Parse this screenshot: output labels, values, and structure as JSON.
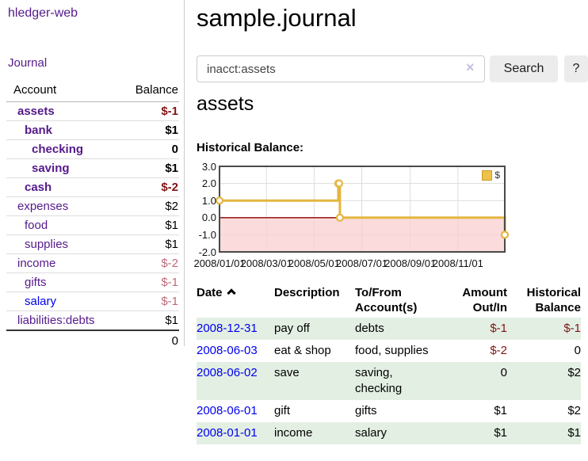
{
  "header": {
    "title": "sample.journal"
  },
  "search": {
    "value": "inacct:assets",
    "button_label": "Search",
    "help_label": "?",
    "clear_icon": "×"
  },
  "sidebar": {
    "brand": "hledger-web",
    "nav_journal": "Journal",
    "columns": {
      "account": "Account",
      "balance": "Balance"
    },
    "accounts": [
      {
        "label": "assets",
        "indent": 1,
        "bold": true,
        "balance": "$-1",
        "bclass": "neg"
      },
      {
        "label": "bank",
        "indent": 2,
        "bold": true,
        "balance": "$1",
        "bclass": ""
      },
      {
        "label": "checking",
        "indent": 3,
        "bold": true,
        "balance": "0",
        "bclass": ""
      },
      {
        "label": "saving",
        "indent": 3,
        "bold": true,
        "balance": "$1",
        "bclass": ""
      },
      {
        "label": "cash",
        "indent": 2,
        "bold": true,
        "balance": "$-2",
        "bclass": "neg"
      },
      {
        "label": "expenses",
        "indent": 1,
        "bold": false,
        "balance": "$2",
        "bclass": ""
      },
      {
        "label": "food",
        "indent": 2,
        "bold": false,
        "balance": "$1",
        "bclass": ""
      },
      {
        "label": "supplies",
        "indent": 2,
        "bold": false,
        "balance": "$1",
        "bclass": ""
      },
      {
        "label": "income",
        "indent": 1,
        "bold": false,
        "balance": "$-2",
        "bclass": "neg-light"
      },
      {
        "label": "gifts",
        "indent": 2,
        "bold": false,
        "balance": "$-1",
        "bclass": "neg-light"
      },
      {
        "label": "salary",
        "indent": 2,
        "bold": false,
        "balance": "$-1",
        "bclass": "neg-light",
        "link": "blue"
      },
      {
        "label": "liabilities:debts",
        "indent": 1,
        "bold": false,
        "balance": "$1",
        "bclass": ""
      }
    ],
    "total": "0"
  },
  "assets_section": {
    "heading": "assets",
    "chart_label": "Historical Balance:"
  },
  "chart_data": {
    "type": "line",
    "step": true,
    "title": "Historical Balance:",
    "series": [
      {
        "name": "$",
        "points": [
          {
            "date": "2008-01-01",
            "value": 1
          },
          {
            "date": "2008-06-01",
            "value": 2
          },
          {
            "date": "2008-06-02",
            "value": 2
          },
          {
            "date": "2008-06-03",
            "value": 0
          },
          {
            "date": "2008-12-31",
            "value": -1
          }
        ]
      }
    ],
    "xlim": [
      "2008-01-01",
      "2008-12-31"
    ],
    "ylim": [
      -2,
      3
    ],
    "x_tick_labels": [
      "2008/01/01",
      "2008/03/01",
      "2008/05/01",
      "2008/07/01",
      "2008/09/01",
      "2008/11/01"
    ],
    "y_tick_values": [
      3,
      2,
      1,
      0,
      -1,
      -2
    ],
    "y_tick_labels": [
      "3.0",
      "2.0",
      "1.0",
      "0.0",
      "-1.0",
      "-2.0"
    ],
    "grid": true,
    "legend": {
      "label": "$",
      "position": "top-right"
    },
    "colors": {
      "line": "#e4b63f",
      "marker_fill": "#ffffff",
      "negative_region_fill": "#f9cfcf",
      "zero_line": "#8b0000",
      "grid": "#dcdcdc",
      "border": "#4a4a4a"
    }
  },
  "register": {
    "columns": [
      "Date",
      "Description",
      "To/From Account(s)",
      "Amount Out/In",
      "Historical Balance"
    ],
    "sort": "ascending",
    "rows": [
      {
        "date": "2008-12-31",
        "description": "pay off",
        "accounts": "debts",
        "amount": "$-1",
        "amount_neg": true,
        "balance": "$-1",
        "balance_neg": true
      },
      {
        "date": "2008-06-03",
        "description": "eat & shop",
        "accounts": "food, supplies",
        "amount": "$-2",
        "amount_neg": true,
        "balance": "0",
        "balance_neg": false
      },
      {
        "date": "2008-06-02",
        "description": "save",
        "accounts": "saving, checking",
        "amount": "0",
        "amount_neg": false,
        "balance": "$2",
        "balance_neg": false
      },
      {
        "date": "2008-06-01",
        "description": "gift",
        "accounts": "gifts",
        "amount": "$1",
        "amount_neg": false,
        "balance": "$2",
        "balance_neg": false
      },
      {
        "date": "2008-01-01",
        "description": "income",
        "accounts": "salary",
        "amount": "$1",
        "amount_neg": false,
        "balance": "$1",
        "balance_neg": false
      }
    ]
  }
}
